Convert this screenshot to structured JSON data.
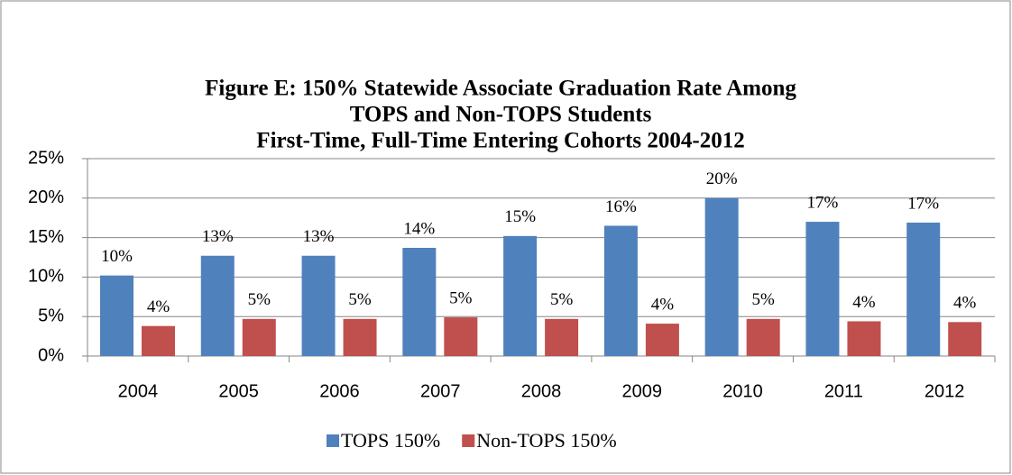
{
  "chart_data": {
    "type": "bar",
    "title": [
      "Figure E:  150% Statewide Associate Graduation Rate Among",
      "TOPS and Non-TOPS Students",
      "First-Time, Full-Time Entering Cohorts 2004-2012"
    ],
    "categories": [
      "2004",
      "2005",
      "2006",
      "2007",
      "2008",
      "2009",
      "2010",
      "2011",
      "2012"
    ],
    "series": [
      {
        "name": "TOPS 150%",
        "color": "#4f81bd",
        "values": [
          10.2,
          12.7,
          12.7,
          13.7,
          15.2,
          16.5,
          20.0,
          17.0,
          16.9
        ],
        "value_labels": [
          "10%",
          "13%",
          "13%",
          "14%",
          "15%",
          "16%",
          "20%",
          "17%",
          "17%"
        ]
      },
      {
        "name": "Non-TOPS 150%",
        "color": "#c0504d",
        "values": [
          3.8,
          4.7,
          4.7,
          4.9,
          4.7,
          4.1,
          4.7,
          4.4,
          4.3
        ],
        "value_labels": [
          "4%",
          "5%",
          "5%",
          "5%",
          "5%",
          "4%",
          "5%",
          "4%",
          "4%"
        ]
      }
    ],
    "ylim": [
      0,
      25
    ],
    "yticks": [
      {
        "value": 0,
        "label": "0%"
      },
      {
        "value": 5,
        "label": "5%"
      },
      {
        "value": 10,
        "label": "10%"
      },
      {
        "value": 15,
        "label": "15%"
      },
      {
        "value": 20,
        "label": "20%"
      },
      {
        "value": 25,
        "label": "25%"
      }
    ],
    "grid": true,
    "legend": "bottom"
  }
}
